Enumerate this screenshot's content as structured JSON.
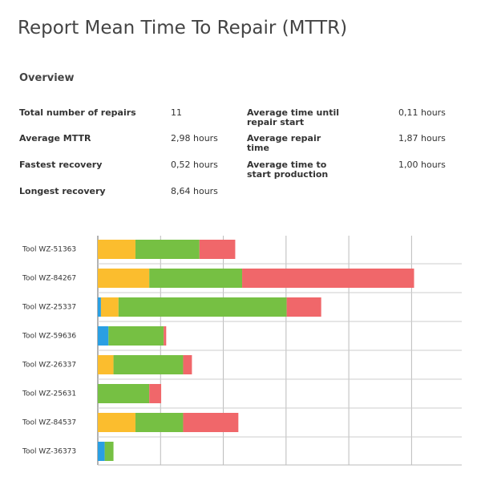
{
  "header": {
    "title": "Report Mean Time To Repair (MTTR)"
  },
  "overview": {
    "title": "Overview",
    "left": [
      {
        "label": "Total number of repairs",
        "value": "11"
      },
      {
        "label": "Average MTTR",
        "value": "2,98 hours"
      },
      {
        "label": "Fastest recovery",
        "value": "0,52 hours"
      },
      {
        "label": "Longest recovery",
        "value": "8,64 hours"
      }
    ],
    "right": [
      {
        "label": "Average time until repair start",
        "value": "0,11 hours"
      },
      {
        "label": "Average repair time",
        "value": "1,87 hours"
      },
      {
        "label": "Average time to start production",
        "value": "1,00 hours"
      }
    ]
  },
  "chart_data": {
    "type": "stacked-barh",
    "categories": [
      "Tool WZ-51363",
      "Tool WZ-84267",
      "Tool WZ-25337",
      "Tool WZ-59636",
      "Tool WZ-26337",
      "Tool WZ-25631",
      "Tool WZ-84537",
      "Tool WZ-36373"
    ],
    "series": [
      {
        "color": "#2a9fe3",
        "values": [
          null,
          null,
          0.05,
          0.17,
          null,
          null,
          null,
          0.11
        ]
      },
      {
        "color": "#fbbd2e",
        "values": [
          0.6,
          0.82,
          0.28,
          null,
          0.25,
          null,
          0.6,
          null
        ]
      },
      {
        "color": "#76c043",
        "values": [
          1.02,
          1.48,
          2.68,
          0.88,
          1.11,
          0.82,
          0.76,
          0.14
        ]
      },
      {
        "color": "#f0676a",
        "values": [
          0.57,
          2.74,
          0.55,
          0.04,
          0.14,
          0.19,
          0.88,
          null
        ]
      }
    ],
    "xlim": [
      0,
      5.8
    ],
    "xticks": [
      0,
      1,
      2,
      3,
      4,
      5
    ],
    "grid": true
  }
}
